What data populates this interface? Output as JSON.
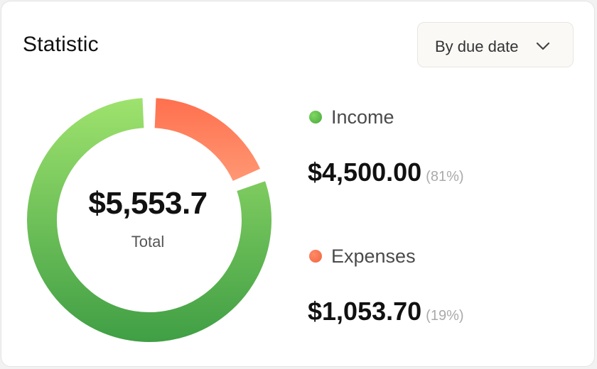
{
  "header": {
    "title": "Statistic",
    "filter": {
      "selected": "By due date",
      "icon": "chevron-down-icon"
    }
  },
  "summary": {
    "total_value": "$5,553.7",
    "total_label": "Total"
  },
  "legend": [
    {
      "label": "Income",
      "amount": "$4,500.00",
      "percent_text": "(81%)",
      "color": "#6cc35a"
    },
    {
      "label": "Expenses",
      "amount": "$1,053.70",
      "percent_text": "(19%)",
      "color": "#ff7a57"
    }
  ],
  "chart_data": {
    "type": "pie",
    "categories": [
      "Income",
      "Expenses"
    ],
    "values": [
      4500.0,
      1053.7
    ],
    "percentages": [
      81,
      19
    ],
    "colors": {
      "Income": [
        "#9fe36e",
        "#3f9e44"
      ],
      "Expenses": [
        "#ff6f4d",
        "#ff9874"
      ]
    }
  }
}
